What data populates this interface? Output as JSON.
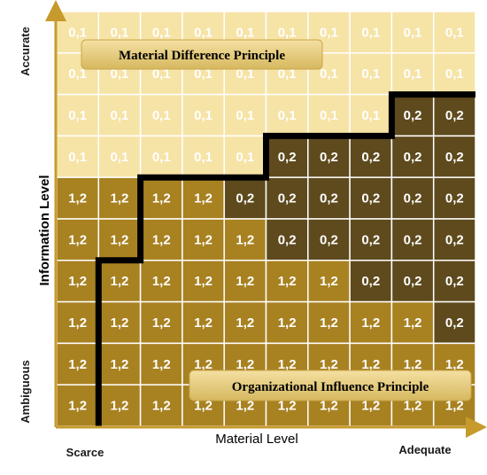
{
  "grid": {
    "rows": [
      [
        "0,1",
        "0,1",
        "0,1",
        "0,1",
        "0,1",
        "0,1",
        "0,1",
        "0,1",
        "0,1",
        "0,1"
      ],
      [
        "0,1",
        "0,1",
        "0,1",
        "0,1",
        "0,1",
        "0,1",
        "0,1",
        "0,1",
        "0,1",
        "0,1"
      ],
      [
        "0,1",
        "0,1",
        "0,1",
        "0,1",
        "0,1",
        "0,1",
        "0,1",
        "0,1",
        "0,2",
        "0,2"
      ],
      [
        "0,1",
        "0,1",
        "0,1",
        "0,1",
        "0,1",
        "0,2",
        "0,2",
        "0,2",
        "0,2",
        "0,2"
      ],
      [
        "1,2",
        "1,2",
        "1,2",
        "1,2",
        "0,2",
        "0,2",
        "0,2",
        "0,2",
        "0,2",
        "0,2"
      ],
      [
        "1,2",
        "1,2",
        "1,2",
        "1,2",
        "1,2",
        "0,2",
        "0,2",
        "0,2",
        "0,2",
        "0,2"
      ],
      [
        "1,2",
        "1,2",
        "1,2",
        "1,2",
        "1,2",
        "1,2",
        "1,2",
        "0,2",
        "0,2",
        "0,2"
      ],
      [
        "1,2",
        "1,2",
        "1,2",
        "1,2",
        "1,2",
        "1,2",
        "1,2",
        "1,2",
        "1,2",
        "0,2"
      ],
      [
        "1,2",
        "1,2",
        "1,2",
        "1,2",
        "1,2",
        "1,2",
        "1,2",
        "1,2",
        "1,2",
        "1,2"
      ],
      [
        "1,2",
        "1,2",
        "1,2",
        "1,2",
        "1,2",
        "1,2",
        "1,2",
        "1,2",
        "1,2",
        "1,2"
      ]
    ],
    "colors": {
      "0,1": "#f6e3a6",
      "0,2": "#5e4a1d",
      "1,2": "#a88121",
      "grid_line": "#ffffff",
      "boundary": "#000000",
      "banner_top": "#f4e0a2",
      "banner_bottom": "#d6b85f",
      "axis": "#c69a2c"
    },
    "boundary_steps": [
      1,
      2,
      4,
      4,
      5,
      5,
      5,
      7,
      7,
      7,
      8,
      8,
      10
    ]
  },
  "labels": {
    "material_difference": "Material Difference Principle",
    "organizational_influence": "Organizational Influence Principle",
    "y_axis_title": "Information Level",
    "y_axis_top": "Accurate",
    "y_axis_bottom": "Ambiguous",
    "x_axis_title": "Material Level",
    "x_axis_left": "Scarce",
    "x_axis_right": "Adequate"
  }
}
